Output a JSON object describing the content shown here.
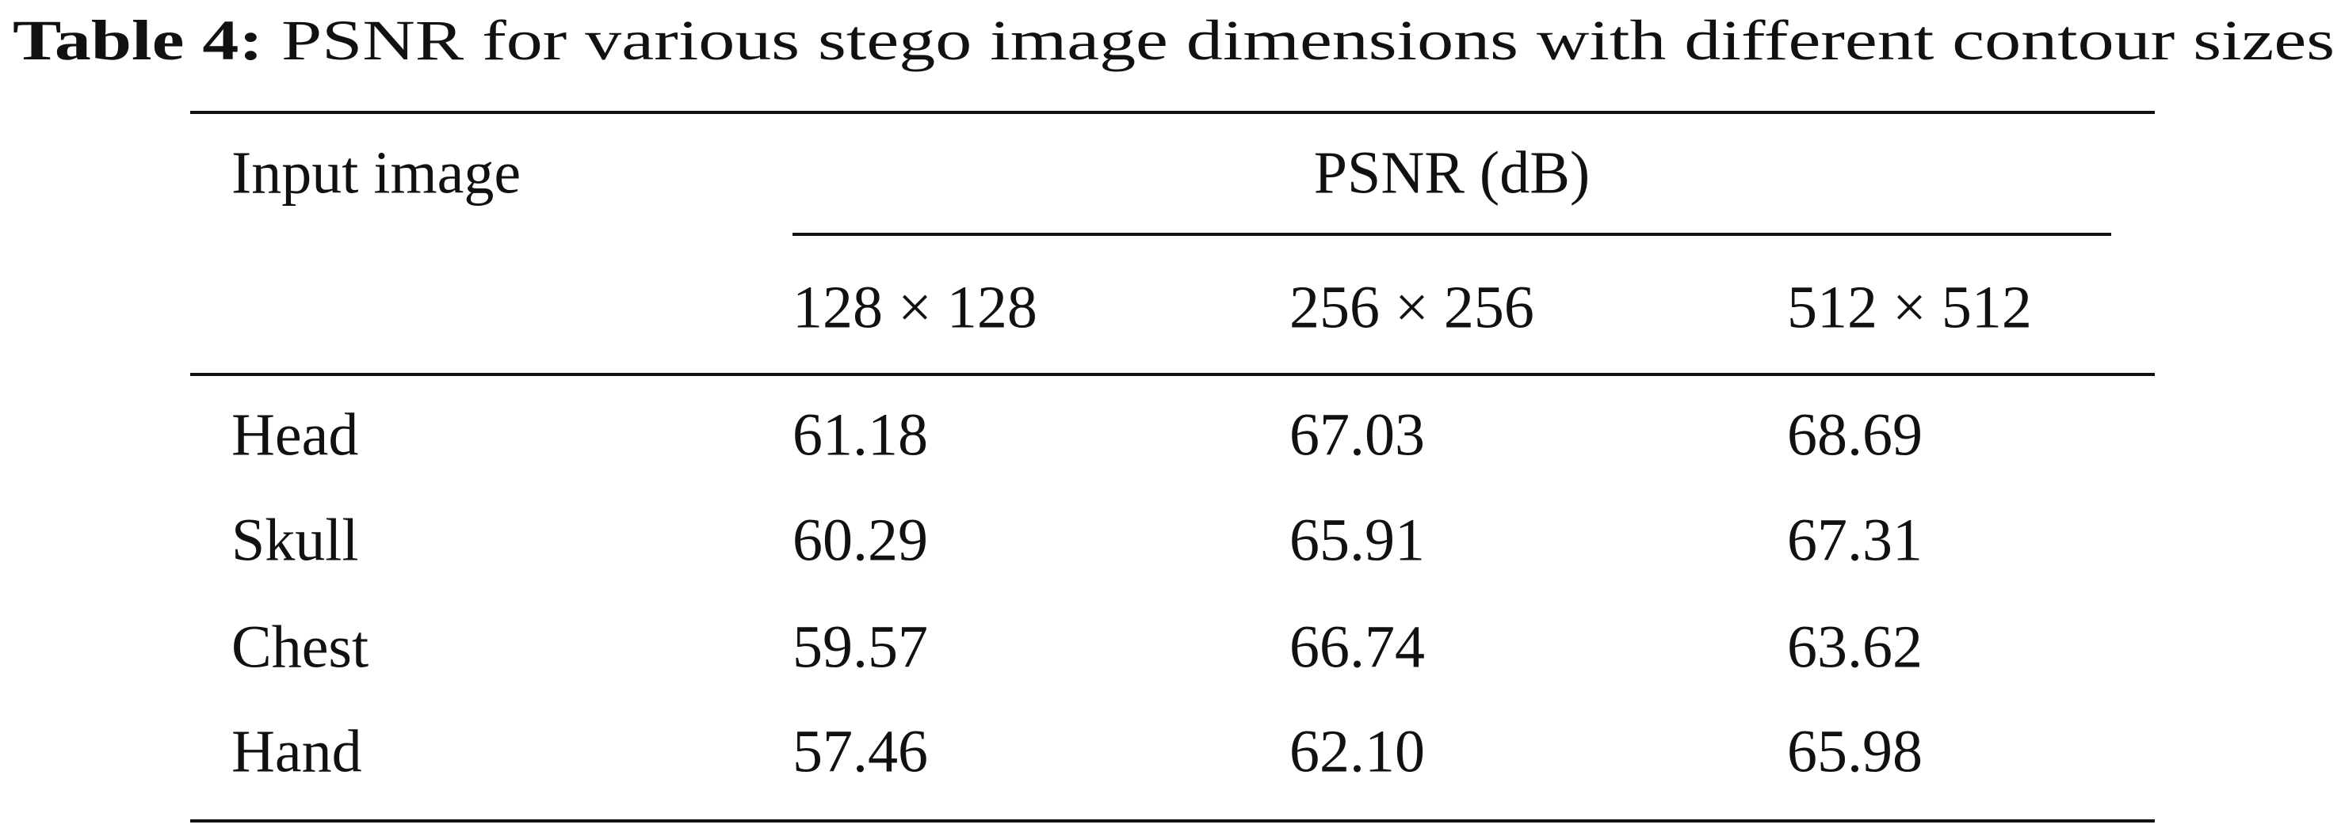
{
  "caption": {
    "label": "Table 4:",
    "text": "PSNR for various stego image dimensions with different contour sizes"
  },
  "table": {
    "headers": [
      "Input image",
      "PSNR (dB)"
    ],
    "subheaders": [
      "128 × 128",
      "256 × 256",
      "512 × 512"
    ],
    "rows": [
      [
        "Head",
        "61.18",
        "67.03",
        "68.69"
      ],
      [
        "Skull",
        "60.29",
        "65.91",
        "67.31"
      ],
      [
        "Chest",
        "59.57",
        "66.74",
        "63.62"
      ],
      [
        "Hand",
        "57.46",
        "62.10",
        "65.98"
      ]
    ]
  }
}
